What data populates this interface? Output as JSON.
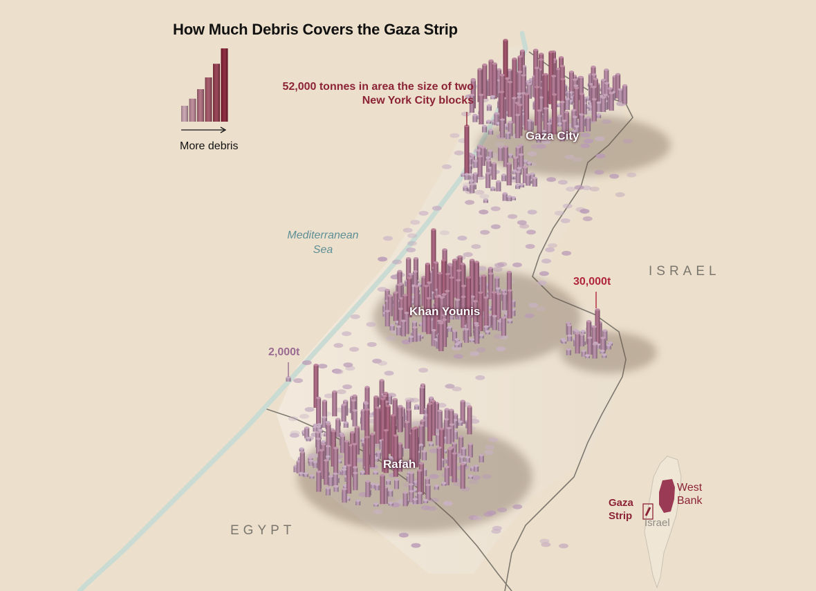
{
  "title": "How Much Debris Covers the Gaza Strip",
  "legend": {
    "label": "More debris",
    "levels": [
      1,
      2,
      3,
      4,
      5,
      6
    ]
  },
  "annotations": {
    "gaza_city_peak": "52,000 tonnes in area the size of two New York City blocks",
    "east_peak": "30,000t",
    "southwest_low": "2,000t"
  },
  "labels": {
    "sea": "Mediterranean Sea",
    "israel": "ISRAEL",
    "egypt": "EGYPT",
    "cities": {
      "gaza_city": "Gaza City",
      "khan_younis": "Khan Younis",
      "rafah": "Rafah"
    }
  },
  "inset": {
    "gaza_strip": "Gaza Strip",
    "west_bank": "West Bank",
    "israel": "Israel"
  },
  "colors": {
    "background": "#ece0cc",
    "land": "#eadbc3",
    "coast": "#c9dbd2",
    "debris_low": "#b99ab7",
    "debris_mid": "#a2506f",
    "debris_high": "#7e1026",
    "annotation_red": "#8c2236",
    "inset_land": "#9a3a55"
  }
}
